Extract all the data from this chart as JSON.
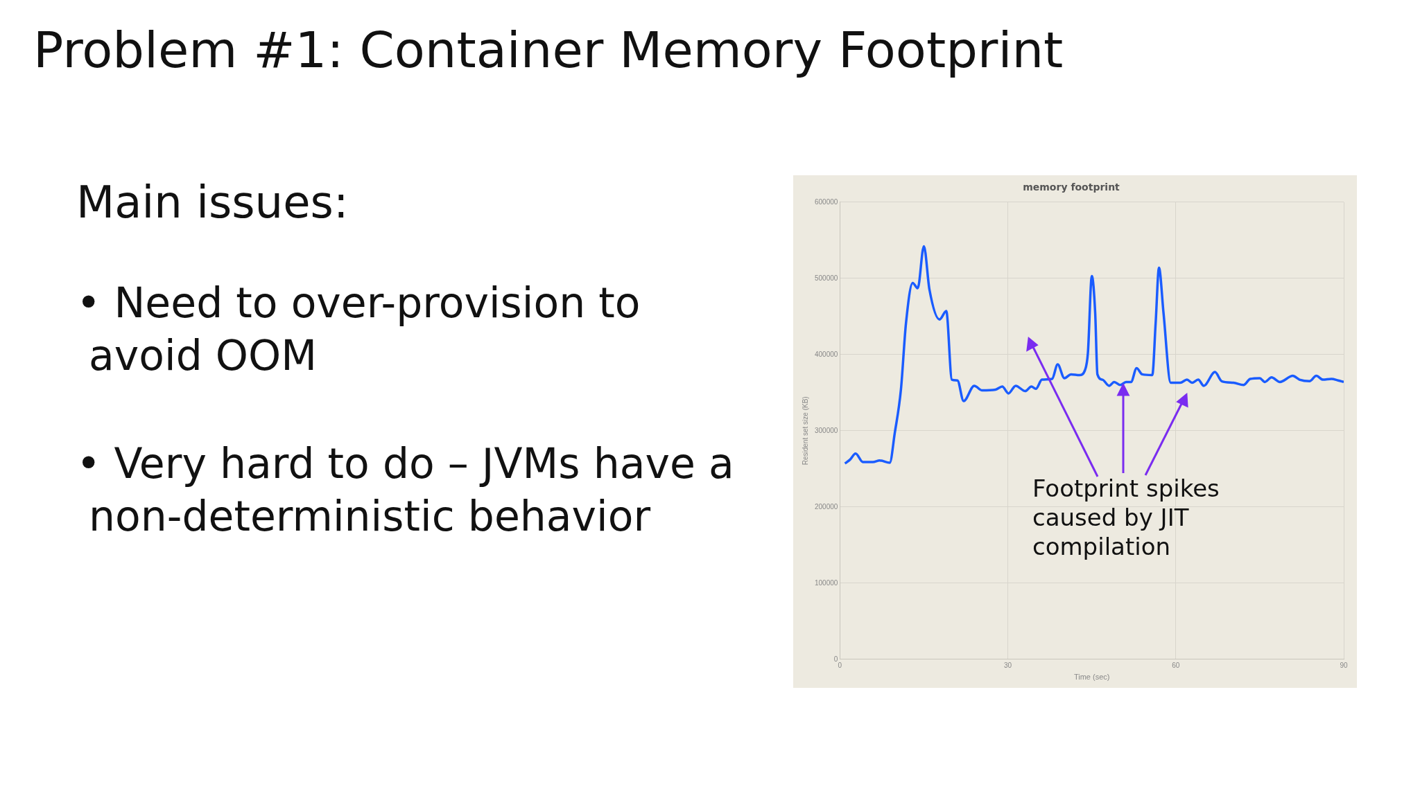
{
  "chart_data": {
    "type": "line",
    "title": "Problem #1: Container Memory Footprint",
    "subtitle": "memory footprint",
    "xlabel": "Time (sec)",
    "ylabel": "Resident set size (KB)",
    "annotations": [
      "Main issues:",
      "• Need to over-provision to avoid OOM",
      "• Very hard to do – JVMs have a non-deterministic behavior",
      "Footprint spikes caused by JIT compilation"
    ],
    "x": [
      0.9,
      1.8,
      2.8,
      4.1,
      5.9,
      7.1,
      8.9,
      9.8,
      10.9,
      11.8,
      13.0,
      13.9,
      15.0,
      16.0,
      17.8,
      19.0,
      20.0,
      21.0,
      22.1,
      24.0,
      25.4,
      27.8,
      29.0,
      30.1,
      31.4,
      33.1,
      34.2,
      35.0,
      36.1,
      37.9,
      38.9,
      40.1,
      41.3,
      42.8,
      43.8,
      44.3,
      45.0,
      45.6,
      46.0,
      46.9,
      48.1,
      49.0,
      50.1,
      51.1,
      52.0,
      53.0,
      54.0,
      55.8,
      56.4,
      57.0,
      57.8,
      59.1,
      60.8,
      62.0,
      62.9,
      64.0,
      65.0,
      67.0,
      68.2,
      70.3,
      72.1,
      73.3,
      75.0,
      75.9,
      77.1,
      78.6,
      80.9,
      82.1,
      83.9,
      85.1,
      86.3,
      87.8,
      89.0,
      90.0
    ],
    "values": [
      257000,
      262000,
      270000,
      259000,
      259000,
      261000,
      258000,
      297000,
      354000,
      441000,
      494000,
      487000,
      542000,
      485000,
      446000,
      457000,
      367000,
      366000,
      339000,
      359000,
      353000,
      354000,
      358000,
      349000,
      359000,
      352000,
      358000,
      355000,
      367000,
      368000,
      387000,
      369000,
      374000,
      373000,
      380000,
      402000,
      503000,
      455000,
      374000,
      367000,
      359000,
      364000,
      360000,
      364000,
      364000,
      382000,
      374000,
      373000,
      441000,
      514000,
      455000,
      363000,
      363000,
      367000,
      363000,
      367000,
      359000,
      377000,
      365000,
      363000,
      360000,
      368000,
      369000,
      364000,
      370000,
      364000,
      372000,
      367000,
      365000,
      372000,
      367000,
      368000,
      366000,
      364000
    ],
    "color": "#1a5cff",
    "xlim": [
      0,
      90
    ],
    "xticks": [
      0,
      30,
      60,
      90
    ],
    "ylim": [
      0,
      600000
    ],
    "yticks": [
      0,
      100000,
      200000,
      300000,
      400000,
      500000,
      600000
    ],
    "grid": true,
    "legend": false,
    "marker": "none",
    "line_style": "solid"
  }
}
